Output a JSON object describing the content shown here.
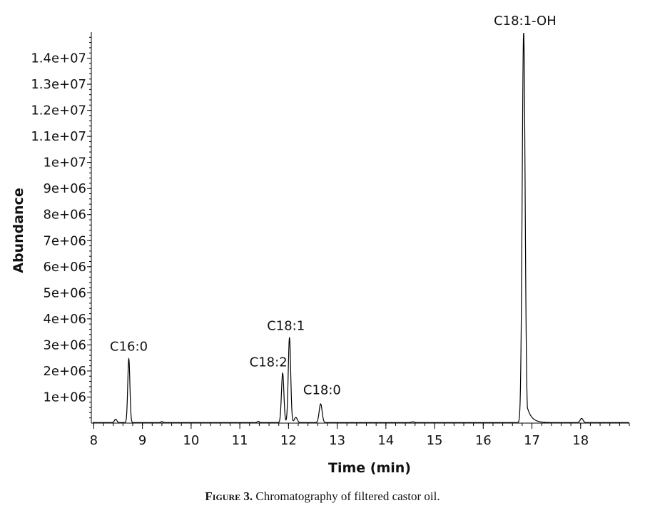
{
  "chart_data": {
    "type": "line",
    "xlabel": "Time (min)",
    "ylabel": "Abundance",
    "xlim": [
      7.95,
      19.0
    ],
    "ylim": [
      0,
      15000000
    ],
    "x_ticks": [
      8,
      9,
      10,
      11,
      12,
      13,
      14,
      15,
      16,
      17,
      18
    ],
    "x_tick_labels": [
      "8",
      "9",
      "10",
      "11",
      "12",
      "13",
      "14",
      "15",
      "16",
      "17",
      "18"
    ],
    "y_ticks": [
      1000000,
      2000000,
      3000000,
      4000000,
      5000000,
      6000000,
      7000000,
      8000000,
      9000000,
      10000000,
      11000000,
      12000000,
      13000000,
      14000000
    ],
    "y_tick_labels": [
      "1e+06",
      "2e+06",
      "3e+06",
      "4e+06",
      "5e+06",
      "6e+06",
      "7e+06",
      "8e+06",
      "9e+06",
      "1e+07",
      "1.1e+07",
      "1.2e+07",
      "1.3e+07",
      "1.4e+07"
    ],
    "baseline": 20000,
    "peaks": [
      {
        "label": "",
        "rt": 8.45,
        "height": 130000,
        "width": 0.025,
        "tail": 0.0
      },
      {
        "label": "C16:0",
        "rt": 8.72,
        "height": 2450000,
        "width": 0.022,
        "tail": 0.01
      },
      {
        "label": "",
        "rt": 9.4,
        "height": 40000,
        "width": 0.02,
        "tail": 0.0
      },
      {
        "label": "",
        "rt": 11.38,
        "height": 50000,
        "width": 0.02,
        "tail": 0.0
      },
      {
        "label": "C18:2",
        "rt": 11.88,
        "height": 1900000,
        "width": 0.025,
        "tail": 0.01
      },
      {
        "label": "C18:1",
        "rt": 12.02,
        "height": 3250000,
        "width": 0.025,
        "tail": 0.012
      },
      {
        "label": "",
        "rt": 12.15,
        "height": 200000,
        "width": 0.03,
        "tail": 0.0
      },
      {
        "label": "C18:0",
        "rt": 12.66,
        "height": 720000,
        "width": 0.03,
        "tail": 0.01
      },
      {
        "label": "",
        "rt": 14.55,
        "height": 30000,
        "width": 0.03,
        "tail": 0.0
      },
      {
        "label": "C18:1-OH",
        "rt": 16.83,
        "height": 14950000,
        "width": 0.03,
        "tail": 0.09
      },
      {
        "label": "",
        "rt": 18.02,
        "height": 160000,
        "width": 0.03,
        "tail": 0.01
      }
    ]
  },
  "caption": {
    "figure_label": "Figure 3.",
    "text": " Chromatography of filtered castor oil."
  }
}
